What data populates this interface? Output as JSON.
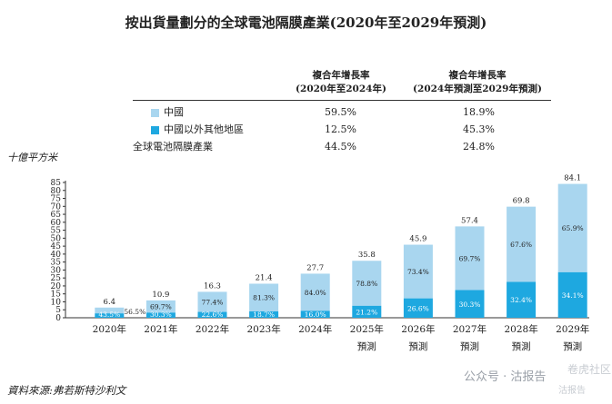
{
  "title": "按出貨量劃分的全球電池隔膜產業(2020年至2029年預測)",
  "table": {
    "col1_header_1": "複合年增長率",
    "col1_header_2": "(2020年至2024年)",
    "col2_header_1": "複合年增長率",
    "col2_header_2": "(2024年預測至2029年預測)",
    "rows": [
      {
        "label": "中國",
        "v1": "59.5%",
        "v2": "18.9%"
      },
      {
        "label": "中國以外其他地區",
        "v1": "12.5%",
        "v2": "45.3%"
      },
      {
        "label": "全球電池隔膜產業",
        "v1": "44.5%",
        "v2": "24.8%"
      }
    ]
  },
  "colors": {
    "china": "#a9d6ef",
    "rest": "#1ea8e0"
  },
  "unit_label": "十億平方米",
  "source": "資料來源:弗若斯特沙利文",
  "watermark": {
    "main": "公众号 · 沽报告",
    "corner1": "卷虎社区",
    "corner2": "沽报告"
  },
  "chart_data": {
    "type": "bar",
    "stacked": true,
    "categories": [
      "2020年",
      "2021年",
      "2022年",
      "2023年",
      "2024年",
      "2025年",
      "2026年",
      "2027年",
      "2028年",
      "2029年"
    ],
    "category_sub": [
      "",
      "",
      "",
      "",
      "",
      "預測",
      "預測",
      "預測",
      "預測",
      "預測"
    ],
    "totals": [
      6.4,
      10.9,
      16.3,
      21.4,
      27.7,
      35.8,
      45.9,
      57.4,
      69.8,
      84.1
    ],
    "series": [
      {
        "name": "中國以外其他地區",
        "color": "#1ea8e0",
        "pct_labels": [
          "43.5%",
          "30.3%",
          "22.6%",
          "18.7%",
          "16.0%",
          "21.2%",
          "26.6%",
          "30.3%",
          "32.4%",
          "34.1%"
        ]
      },
      {
        "name": "中國",
        "color": "#a9d6ef",
        "pct_labels": [
          "56.5%",
          "69.7%",
          "77.4%",
          "81.3%",
          "84.0%",
          "78.8%",
          "73.4%",
          "69.7%",
          "67.6%",
          "65.9%"
        ]
      }
    ],
    "ylim": [
      0,
      85
    ],
    "yticks": [
      0,
      5,
      10,
      15,
      20,
      25,
      30,
      35,
      40,
      45,
      50,
      55,
      60,
      65,
      70,
      75,
      80,
      85
    ],
    "ylabel": "十億平方米"
  }
}
